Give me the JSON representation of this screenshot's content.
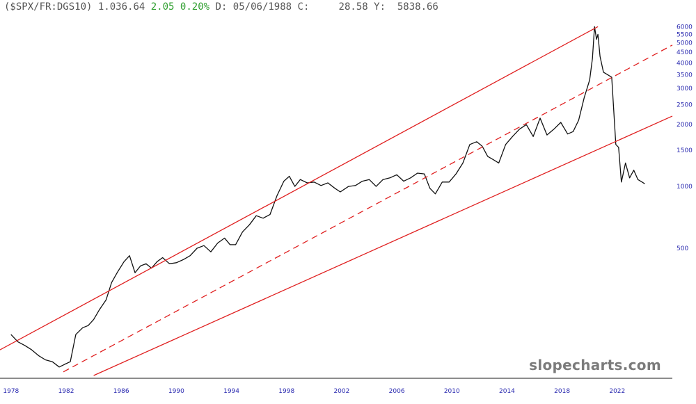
{
  "header": {
    "symbol": "($SPX/FR:DGS10)",
    "value": "1.036.64",
    "change": "2.05",
    "change_pct": "0.20%",
    "d_label": "D:",
    "date": "05/06/1988",
    "c_label": "C:",
    "c_value": "28.58",
    "y_label": "Y:",
    "y_value": "5838.66"
  },
  "watermark": "slopecharts.com",
  "colors": {
    "price": "#111111",
    "channel": "#e02020",
    "axis_text": "#2a2ab0",
    "positive": "#2e9e2e"
  },
  "chart_data": {
    "type": "line",
    "title": "",
    "xlabel": "",
    "ylabel": "",
    "y_scale": "log",
    "xlim": [
      1977.2,
      2026.0
    ],
    "ylim": [
      120,
      6400
    ],
    "x_ticks": [
      "1978",
      "1982",
      "1986",
      "1990",
      "1994",
      "1998",
      "2002",
      "2006",
      "2010",
      "2014",
      "2018",
      "2022"
    ],
    "y_ticks": [
      "6000",
      "5500",
      "5000",
      "4500",
      "4000",
      "3500",
      "3000",
      "2500",
      "2000",
      "1500",
      "1000",
      "500"
    ],
    "grid": false,
    "series": [
      {
        "role": "price",
        "x": [
          1978.0,
          1978.5,
          1979.0,
          1979.5,
          1980.0,
          1980.5,
          1981.0,
          1981.5,
          1981.9,
          1982.3,
          1982.7,
          1983.2,
          1983.6,
          1984.0,
          1984.4,
          1984.9,
          1985.3,
          1985.7,
          1986.2,
          1986.6,
          1987.0,
          1987.4,
          1987.8,
          1988.2,
          1988.6,
          1989.0,
          1989.5,
          1990.0,
          1990.5,
          1991.0,
          1991.5,
          1992.0,
          1992.5,
          1993.0,
          1993.5,
          1993.9,
          1994.3,
          1994.8,
          1995.3,
          1995.8,
          1996.3,
          1996.8,
          1997.3,
          1997.8,
          1998.2,
          1998.6,
          1999.0,
          1999.5,
          2000.0,
          2000.5,
          2001.0,
          2001.5,
          2001.9,
          2002.5,
          2003.0,
          2003.5,
          2004.0,
          2004.5,
          2005.0,
          2005.5,
          2006.0,
          2006.5,
          2007.0,
          2007.5,
          2008.0,
          2008.4,
          2008.8,
          2009.3,
          2009.8,
          2010.3,
          2010.8,
          2011.3,
          2011.8,
          2012.2,
          2012.6,
          2013.0,
          2013.4,
          2013.9,
          2014.4,
          2014.9,
          2015.4,
          2015.9,
          2016.4,
          2016.9,
          2017.4,
          2017.9,
          2018.4,
          2018.8,
          2019.2,
          2019.6,
          2020.0,
          2020.2,
          2020.35,
          2020.5,
          2020.6,
          2020.75,
          2021.0,
          2021.3,
          2021.6,
          2021.9,
          2022.1,
          2022.3,
          2022.6,
          2022.9,
          2023.2,
          2023.5,
          2023.8,
          2024.0
        ],
        "y": [
          190,
          175,
          168,
          160,
          150,
          143,
          140,
          132,
          136,
          140,
          190,
          205,
          210,
          225,
          250,
          280,
          340,
          380,
          430,
          460,
          380,
          410,
          420,
          400,
          430,
          450,
          420,
          425,
          440,
          460,
          500,
          515,
          480,
          530,
          560,
          520,
          520,
          600,
          650,
          720,
          700,
          730,
          900,
          1060,
          1120,
          1000,
          1080,
          1040,
          1050,
          1010,
          1040,
          980,
          940,
          1000,
          1010,
          1060,
          1080,
          1000,
          1080,
          1100,
          1140,
          1060,
          1100,
          1160,
          1150,
          980,
          920,
          1050,
          1050,
          1150,
          1300,
          1600,
          1650,
          1570,
          1400,
          1350,
          1300,
          1600,
          1750,
          1900,
          2000,
          1750,
          2150,
          1780,
          1900,
          2050,
          1800,
          1850,
          2100,
          2700,
          3300,
          4200,
          6000,
          5200,
          5500,
          4300,
          3600,
          3500,
          3400,
          1600,
          1550,
          1050,
          1300,
          1100,
          1200,
          1080,
          1050,
          1030
        ]
      },
      {
        "role": "channel-upper",
        "x": [
          1977.2,
          2020.6
        ],
        "y": [
          160,
          6000
        ]
      },
      {
        "role": "channel-middle-dashed",
        "x": [
          1981.8,
          2026.0
        ],
        "y": [
          125,
          4880
        ]
      },
      {
        "role": "channel-lower",
        "x": [
          1984.0,
          2026.0
        ],
        "y": [
          120,
          2200
        ]
      }
    ]
  }
}
